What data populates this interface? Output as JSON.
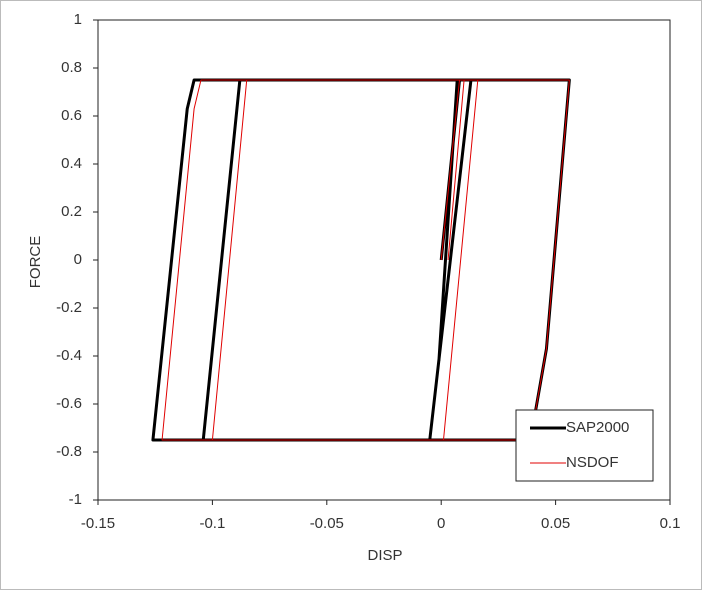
{
  "chart_data": {
    "type": "line",
    "x_label": "DISP",
    "y_label": "FORCE",
    "xlim": [
      -0.15,
      0.1
    ],
    "xticks": [
      -0.15,
      -0.1,
      -0.05,
      0,
      0.05,
      0.1
    ],
    "ylim": [
      -1,
      1
    ],
    "yticks": [
      1,
      0.8,
      0.6,
      0.4,
      0.2,
      0,
      -0.2,
      -0.4,
      -0.6,
      -0.8,
      -1
    ],
    "legend": "lower right",
    "series": [
      {
        "name": "SAP2000",
        "color": "#000000",
        "x": [
          0,
          0.008,
          0.056,
          0.046,
          0.039,
          -0.126,
          -0.111,
          -0.108,
          0.013,
          -0.005,
          -0.104,
          -0.088,
          0.007,
          -0.001
        ],
        "values": [
          0,
          0.75,
          0.75,
          -0.37,
          -0.75,
          -0.75,
          0.63,
          0.75,
          0.75,
          -0.75,
          -0.75,
          0.75,
          0.75,
          -0.42
        ]
      },
      {
        "name": "NSDOF",
        "color": "#e00000",
        "x": [
          0,
          0.008,
          0.056,
          0.046,
          0.039,
          -0.122,
          -0.108,
          -0.105,
          0.016,
          0.001,
          -0.1,
          -0.085,
          0.01,
          0.003
        ],
        "values": [
          0,
          0.75,
          0.75,
          -0.37,
          -0.75,
          -0.75,
          0.63,
          0.75,
          0.75,
          -0.75,
          -0.75,
          0.75,
          0.75,
          0
        ]
      }
    ]
  }
}
